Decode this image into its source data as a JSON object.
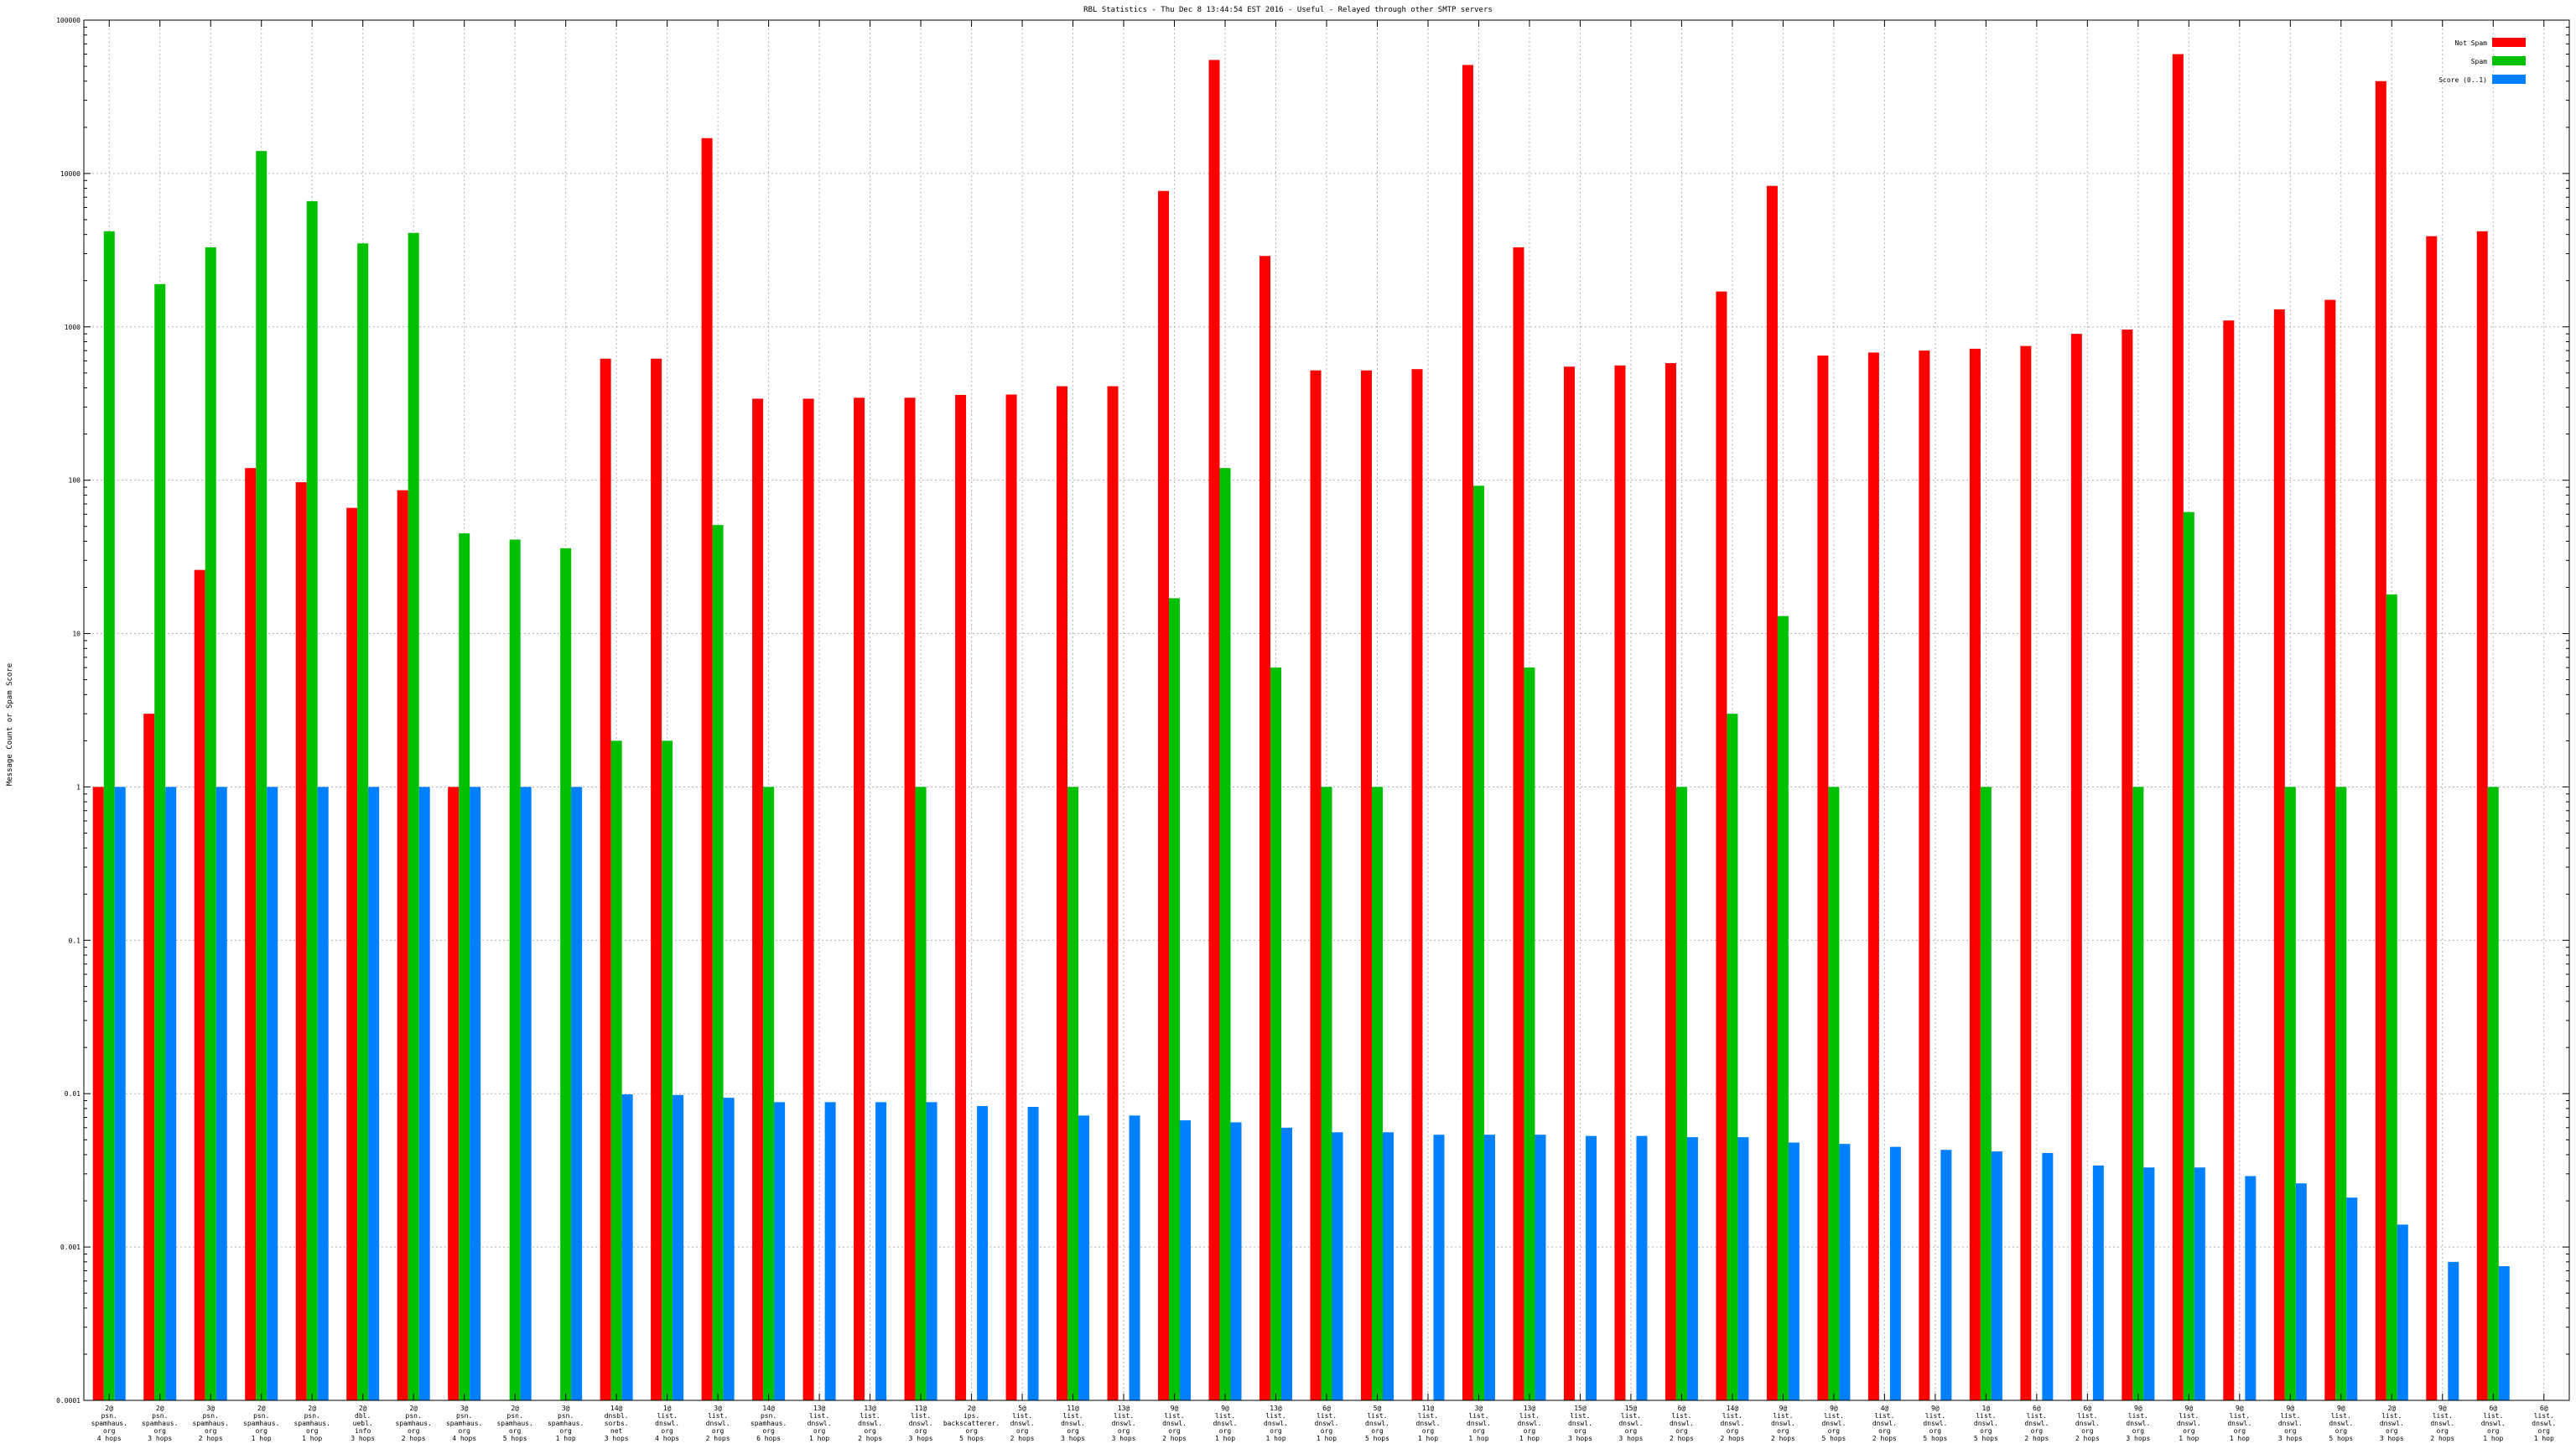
{
  "chart_data": {
    "type": "bar",
    "title": "RBL Statistics - Thu Dec  8 13:44:54 EST 2016 - Useful - Relayed through other SMTP servers",
    "xlabel": "",
    "ylabel": "Message Count or Spam Score",
    "yscale": "log",
    "ylim": [
      0.0001,
      100000
    ],
    "yticks": [
      {
        "value": 0.0001,
        "label": "0.0001"
      },
      {
        "value": 0.001,
        "label": "0.001"
      },
      {
        "value": 0.01,
        "label": "0.01"
      },
      {
        "value": 0.1,
        "label": "0.1"
      },
      {
        "value": 1,
        "label": "1"
      },
      {
        "value": 10,
        "label": "10"
      },
      {
        "value": 100,
        "label": "100"
      },
      {
        "value": 1000,
        "label": "1000"
      },
      {
        "value": 10000,
        "label": "10000"
      },
      {
        "value": 100000,
        "label": "100000"
      }
    ],
    "grid": true,
    "legend_position": "top-right",
    "categories": [
      [
        "2@",
        "psn.",
        "spamhaus.",
        "org",
        "4 hops"
      ],
      [
        "2@",
        "psn.",
        "spamhaus.",
        "org",
        "3 hops"
      ],
      [
        "3@",
        "psn.",
        "spamhaus.",
        "org",
        "2 hops"
      ],
      [
        "2@",
        "psn.",
        "spamhaus.",
        "org",
        "1 hop"
      ],
      [
        "2@",
        "psn.",
        "spamhaus.",
        "org",
        "1 hop"
      ],
      [
        "2@",
        "dbl.",
        "uebl.",
        "info",
        "3 hops"
      ],
      [
        "2@",
        "psn.",
        "spamhaus.",
        "org",
        "2 hops"
      ],
      [
        "3@",
        "psn.",
        "spamhaus.",
        "org",
        "4 hops"
      ],
      [
        "2@",
        "psn.",
        "spamhaus.",
        "org",
        "5 hops"
      ],
      [
        "3@",
        "psn.",
        "spamhaus.",
        "org",
        "1 hop"
      ],
      [
        "14@",
        "dnsbl.",
        "sorbs.",
        "net",
        "3 hops"
      ],
      [
        "1@",
        "list.",
        "dnswl.",
        "org",
        "4 hops"
      ],
      [
        "3@",
        "list.",
        "dnswl.",
        "org",
        "2 hops"
      ],
      [
        "14@",
        "psn.",
        "spamhaus.",
        "org",
        "6 hops"
      ],
      [
        "13@",
        "list.",
        "dnswl.",
        "org",
        "1 hop"
      ],
      [
        "13@",
        "list.",
        "dnswl.",
        "org",
        "2 hops"
      ],
      [
        "11@",
        "list.",
        "dnswl.",
        "org",
        "3 hops"
      ],
      [
        "2@",
        "ips.",
        "backscatterer.",
        "org",
        "5 hops"
      ],
      [
        "5@",
        "list.",
        "dnswl.",
        "org",
        "2 hops"
      ],
      [
        "11@",
        "list.",
        "dnswl.",
        "org",
        "3 hops"
      ],
      [
        "13@",
        "list.",
        "dnswl.",
        "org",
        "3 hops"
      ],
      [
        "9@",
        "list.",
        "dnswl.",
        "org",
        "2 hops"
      ],
      [
        "9@",
        "list.",
        "dnswl.",
        "org",
        "1 hop"
      ],
      [
        "13@",
        "list.",
        "dnswl.",
        "org",
        "1 hop"
      ],
      [
        "6@",
        "list.",
        "dnswl.",
        "org",
        "1 hop"
      ],
      [
        "5@",
        "list.",
        "dnswl.",
        "org",
        "5 hops"
      ],
      [
        "11@",
        "list.",
        "dnswl.",
        "org",
        "1 hop"
      ],
      [
        "3@",
        "list.",
        "dnswl.",
        "org",
        "1 hop"
      ],
      [
        "13@",
        "list.",
        "dnswl.",
        "org",
        "1 hop"
      ],
      [
        "15@",
        "list.",
        "dnswl.",
        "org",
        "3 hops"
      ],
      [
        "15@",
        "list.",
        "dnswl.",
        "org",
        "3 hops"
      ],
      [
        "6@",
        "list.",
        "dnswl.",
        "org",
        "2 hops"
      ],
      [
        "14@",
        "list.",
        "dnswl.",
        "org",
        "2 hops"
      ],
      [
        "9@",
        "list.",
        "dnswl.",
        "org",
        "2 hops"
      ],
      [
        "9@",
        "list.",
        "dnswl.",
        "org",
        "5 hops"
      ],
      [
        "4@",
        "list.",
        "dnswl.",
        "org",
        "2 hops"
      ],
      [
        "9@",
        "list.",
        "dnswl.",
        "org",
        "5 hops"
      ],
      [
        "1@",
        "list.",
        "dnswl.",
        "org",
        "5 hops"
      ],
      [
        "6@",
        "list.",
        "dnswl.",
        "org",
        "2 hops"
      ],
      [
        "6@",
        "list.",
        "dnswl.",
        "org",
        "2 hops"
      ],
      [
        "9@",
        "list.",
        "dnswl.",
        "org",
        "3 hops"
      ],
      [
        "9@",
        "list.",
        "dnswl.",
        "org",
        "1 hop"
      ],
      [
        "9@",
        "list.",
        "dnswl.",
        "org",
        "1 hop"
      ],
      [
        "9@",
        "list.",
        "dnswl.",
        "org",
        "3 hops"
      ],
      [
        "9@",
        "list.",
        "dnswl.",
        "org",
        "5 hops"
      ],
      [
        "2@",
        "list.",
        "dnswl.",
        "org",
        "3 hops"
      ],
      [
        "9@",
        "list.",
        "dnswl.",
        "org",
        "2 hops"
      ],
      [
        "6@",
        "list.",
        "dnswl.",
        "org",
        "1 hop"
      ],
      [
        "6@",
        "list.",
        "dnswl.",
        "org",
        "1 hop"
      ]
    ],
    "series": [
      {
        "name": "Not Spam",
        "color": "#ff0000",
        "values": [
          1,
          3,
          26,
          120,
          97,
          66,
          86,
          1,
          null,
          null,
          620,
          620,
          17000,
          340,
          340,
          345,
          345,
          360,
          362,
          410,
          410,
          7700,
          55000,
          2900,
          520,
          520,
          530,
          51000,
          3300,
          550,
          560,
          580,
          1700,
          8300,
          650,
          680,
          700,
          720,
          750,
          900,
          960,
          60000,
          1100,
          1300,
          1500,
          40000,
          3900,
          4200,
          null
        ]
      },
      {
        "name": "Spam",
        "color": "#00c000",
        "values": [
          4200,
          1900,
          3300,
          14000,
          6600,
          3500,
          4100,
          45,
          41,
          36,
          2,
          2,
          51,
          1,
          null,
          null,
          1,
          null,
          null,
          1,
          null,
          17,
          120,
          6,
          1,
          1,
          null,
          92,
          6,
          null,
          null,
          1,
          3,
          13,
          1,
          null,
          null,
          1,
          null,
          null,
          1,
          62,
          null,
          1,
          1,
          18,
          null,
          1,
          null
        ]
      },
      {
        "name": "Score (0..1)",
        "color": "#0080ff",
        "values": [
          1,
          1,
          1,
          1,
          1,
          1,
          1,
          1,
          1,
          1,
          0.0099,
          0.0098,
          0.0094,
          0.0088,
          0.0088,
          0.0088,
          0.0088,
          0.0083,
          0.0082,
          0.0072,
          0.0072,
          0.0067,
          0.0065,
          0.006,
          0.0056,
          0.0056,
          0.0054,
          0.0054,
          0.0054,
          0.0053,
          0.0053,
          0.0052,
          0.0052,
          0.0048,
          0.0047,
          0.0045,
          0.0043,
          0.0042,
          0.0041,
          0.0034,
          0.0033,
          0.0033,
          0.0029,
          0.0026,
          0.0021,
          0.0014,
          0.0008,
          0.00075,
          null
        ]
      }
    ]
  }
}
